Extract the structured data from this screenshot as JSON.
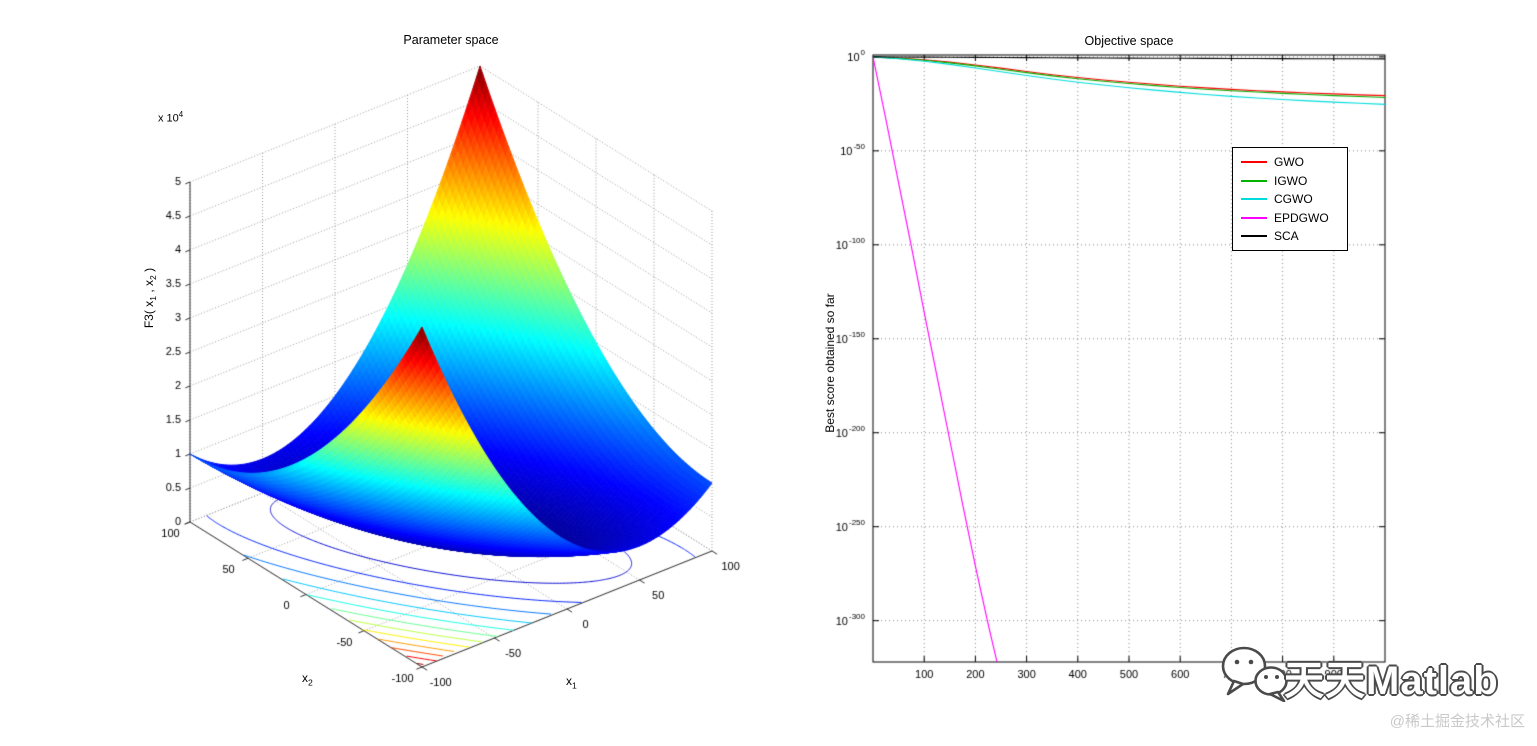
{
  "watermark": {
    "brand": "天天Matlab",
    "community": "@稀土掘金技术社区",
    "icon": "wechat-icon"
  },
  "chart_data": [
    {
      "type": "surface",
      "title": "Parameter space",
      "xlabel": "x_1",
      "ylabel": "x_2",
      "zlabel": "F3( x_1 , x_2 )",
      "z_scale_label": "x 10^4",
      "x_ticks": [
        -100,
        -50,
        0,
        50,
        100
      ],
      "y_ticks": [
        -100,
        -50,
        0,
        50,
        100
      ],
      "z_ticks": [
        0,
        0.5,
        1,
        1.5,
        2,
        2.5,
        3,
        3.5,
        4,
        4.5,
        5
      ],
      "xlim": [
        -100,
        100
      ],
      "ylim": [
        -100,
        100
      ],
      "zlim": [
        0,
        50000
      ],
      "function": "z = x1^2 + (x1 + x2)^2",
      "colormap": "jet",
      "grid": "dotted",
      "contour_levels": [
        4000,
        8000,
        12000,
        16000,
        20000,
        24000,
        28000,
        32000,
        36000,
        40000,
        44000,
        48000
      ],
      "view": {
        "azimuth": -37.5,
        "elevation": 30
      }
    },
    {
      "type": "line",
      "title": "Objective space",
      "xlabel": "",
      "ylabel": "Best score obtained so far",
      "x_ticks": [
        100,
        200,
        300,
        400,
        500,
        600,
        700,
        800,
        900
      ],
      "xlim": [
        0,
        1000
      ],
      "yscale": "log10",
      "y_tick_exponents": [
        0,
        -50,
        -100,
        -150,
        -200,
        -250,
        -300
      ],
      "ylim_exponents": [
        -322,
        1
      ],
      "grid": "dotted",
      "legend_position": "upper-right-inside",
      "series": [
        {
          "name": "GWO",
          "color": "#ff0000",
          "x": [
            0,
            50,
            100,
            150,
            200,
            250,
            300,
            350,
            400,
            450,
            500,
            550,
            600,
            650,
            700,
            750,
            800,
            850,
            900,
            950,
            1000
          ],
          "log10y": [
            0,
            -0.6,
            -1.5,
            -2.8,
            -4.3,
            -6,
            -7.8,
            -9.5,
            -11,
            -12.3,
            -13.5,
            -14.6,
            -15.6,
            -16.5,
            -17.3,
            -18,
            -18.6,
            -19.2,
            -19.7,
            -20.2,
            -20.6
          ]
        },
        {
          "name": "IGWO",
          "color": "#00b400",
          "x": [
            0,
            50,
            100,
            150,
            200,
            250,
            300,
            350,
            400,
            450,
            500,
            550,
            600,
            650,
            700,
            750,
            800,
            850,
            900,
            950,
            1000
          ],
          "log10y": [
            0,
            -0.8,
            -1.8,
            -3.2,
            -4.8,
            -6.6,
            -8.4,
            -10.1,
            -11.6,
            -13,
            -14.2,
            -15.3,
            -16.3,
            -17.2,
            -18,
            -18.7,
            -19.4,
            -20,
            -20.6,
            -21.1,
            -21.6
          ]
        },
        {
          "name": "CGWO",
          "color": "#00dcdc",
          "x": [
            0,
            50,
            100,
            150,
            200,
            250,
            300,
            350,
            400,
            450,
            500,
            550,
            600,
            650,
            700,
            750,
            800,
            850,
            900,
            950,
            1000
          ],
          "log10y": [
            0,
            -1,
            -2.3,
            -4,
            -5.9,
            -7.9,
            -9.9,
            -11.8,
            -13.5,
            -15,
            -16.4,
            -17.7,
            -18.9,
            -20,
            -21,
            -21.9,
            -22.7,
            -23.4,
            -24.1,
            -24.7,
            -25.3
          ]
        },
        {
          "name": "EPDGWO",
          "color": "#ff00ff",
          "x": [
            0,
            25,
            50,
            75,
            100,
            125,
            150,
            175,
            200,
            225,
            250,
            275
          ],
          "log10y": [
            0,
            -33,
            -67,
            -101,
            -136,
            -170,
            -204,
            -238,
            -271,
            -302,
            -331,
            -358
          ]
        },
        {
          "name": "SCA",
          "color": "#000000",
          "x": [
            0,
            50,
            100,
            150,
            200,
            250,
            300,
            350,
            400,
            450,
            500,
            550,
            600,
            650,
            700,
            750,
            800,
            850,
            900,
            950,
            1000
          ],
          "log10y": [
            0,
            -0.05,
            -0.12,
            -0.2,
            -0.28,
            -0.35,
            -0.42,
            -0.48,
            -0.55,
            -0.6,
            -0.66,
            -0.71,
            -0.76,
            -0.8,
            -0.85,
            -0.89,
            -0.93,
            -0.96,
            -1.0,
            -1.03,
            -1.06
          ]
        }
      ]
    }
  ]
}
